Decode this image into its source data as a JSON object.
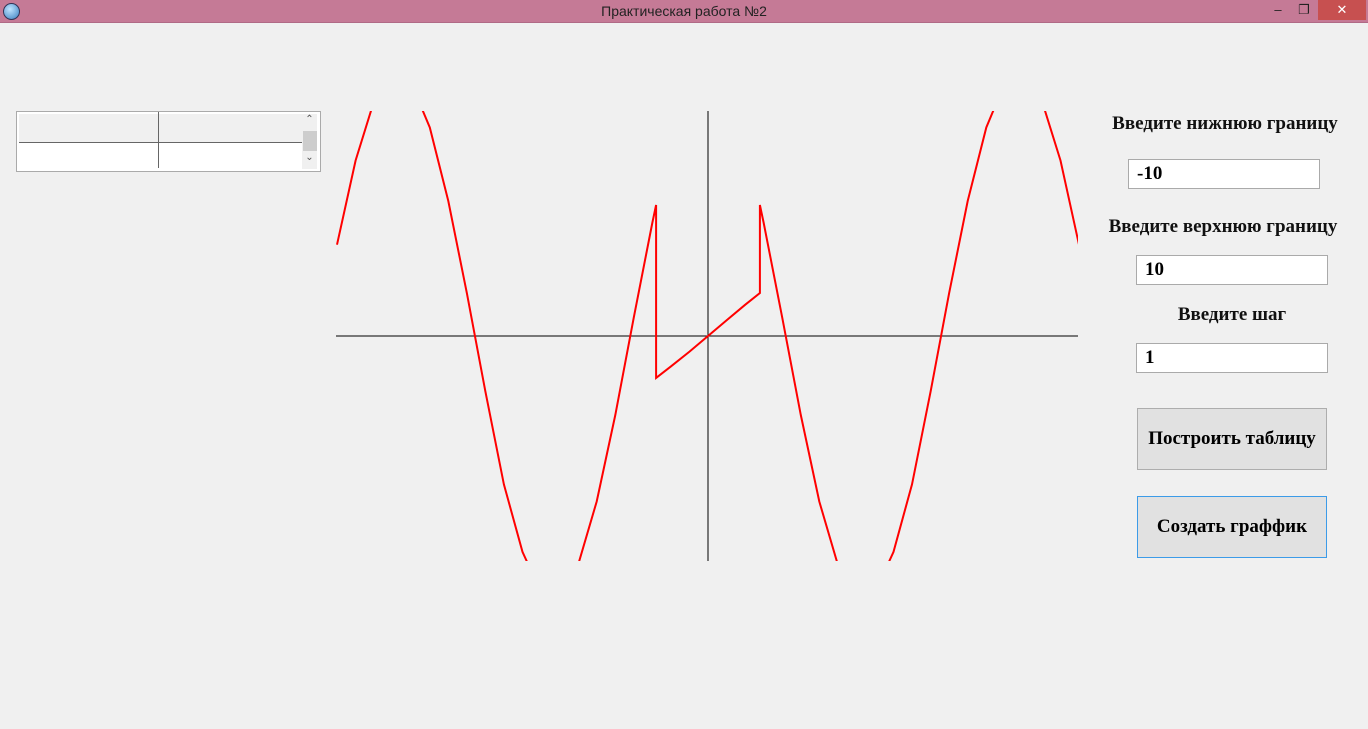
{
  "window": {
    "title": "Практическая работа №2",
    "minimize": "–",
    "restore": "❐",
    "close": "✕"
  },
  "table": {
    "columns": [
      "",
      ""
    ],
    "rows": [
      [
        "",
        ""
      ]
    ],
    "scroll_up": "⌃",
    "scroll_down": "⌄"
  },
  "form": {
    "lower_label": "Введите нижнюю границу",
    "lower_value": "-10",
    "upper_label": "Введите верхнюю границу",
    "upper_value": "10",
    "step_label": "Введите шаг",
    "step_value": "1",
    "build_table": "Построить таблицу",
    "create_chart": "Создать граффик"
  },
  "chart_data": {
    "type": "line",
    "color": "#ff0000",
    "axes_color": "#000000",
    "grid": false,
    "xlim": [
      -10,
      10
    ],
    "x": [
      -10,
      -9.5,
      -9,
      -8.5,
      -8,
      -7.5,
      -7,
      -6.5,
      -6,
      -5.5,
      -5,
      -4.5,
      -4,
      -3.5,
      -3,
      -2.5,
      -2,
      -1.5,
      -1.4,
      -1.4,
      -1,
      -0.5,
      0,
      0.5,
      1,
      1.4,
      1.4,
      1.5,
      2,
      2.5,
      3,
      3.5,
      4,
      4.5,
      5,
      5.5,
      6,
      6.5,
      7,
      7.5,
      8,
      8.5,
      9,
      9.5,
      10
    ],
    "y": [
      2.46,
      4.73,
      6.34,
      7.07,
      6.82,
      5.62,
      3.64,
      1.15,
      -1.5,
      -4.0,
      -5.82,
      -6.91,
      -7.03,
      -6.17,
      -4.46,
      -2.13,
      0.5,
      3.06,
      3.53,
      -1.13,
      -0.82,
      -0.42,
      0,
      0.42,
      0.84,
      1.16,
      3.53,
      3.06,
      0.5,
      -2.13,
      -4.46,
      -6.17,
      -7.03,
      -6.91,
      -5.82,
      -4.0,
      -1.5,
      1.15,
      3.64,
      5.62,
      6.82,
      7.07,
      6.34,
      4.73,
      2.46
    ]
  }
}
